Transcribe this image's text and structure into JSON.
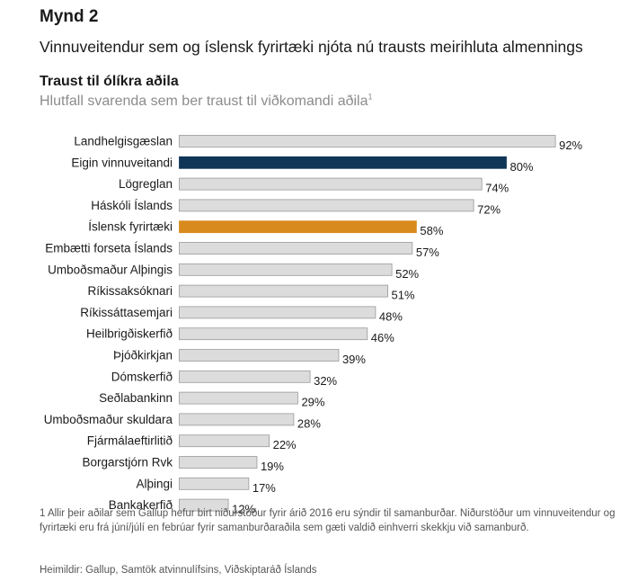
{
  "figure_label": "Mynd 2",
  "headline": "Vinnuveitendur sem og íslensk fyrirtæki njóta nú trausts meirihluta almennings",
  "footnote": "1 Allir þeir aðilar sem Gallup hefur birt niðurstöður fyrir árið 2016 eru sýndir til samanburðar. Niðurstöður um vinnuveitendur og fyrirtæki eru frá júní/júlí en febrúar fyrir samanburðaraðila sem gæti valdið einhverri skekkju við samanburð.",
  "source": "Heimildir: Gallup, Samtök atvinnulífsins, Viðskiptaráð Íslands",
  "colors": {
    "default_bar": "#dcdcdc",
    "bar_stroke": "#9a9a9a",
    "highlight_employer": "#0f3557",
    "highlight_companies": "#d88a1c"
  },
  "chart_data": {
    "type": "bar",
    "orientation": "horizontal",
    "title": "Traust til ólíkra aðila",
    "subtitle": "Hlutfall svarenda sem ber traust til viðkomandi aðila",
    "subtitle_footnote_mark": "1",
    "value_suffix": "%",
    "xlim": [
      0,
      100
    ],
    "categories": [
      "Landhelgisgæslan",
      "Eigin vinnuveitandi",
      "Lögreglan",
      "Háskóli Íslands",
      "Íslensk fyrirtæki",
      "Embætti forseta Íslands",
      "Umboðsmaður Alþingis",
      "Ríkissaksóknari",
      "Ríkissáttasemjari",
      "Heilbrigðiskerfið",
      "Þjóðkirkjan",
      "Dómskerfið",
      "Seðlabankinn",
      "Umboðsmaður skuldara",
      "Fjármálaeftirlitið",
      "Borgarstjórn Rvk",
      "Alþingi",
      "Bankakerfið"
    ],
    "values": [
      92,
      80,
      74,
      72,
      58,
      57,
      52,
      51,
      48,
      46,
      39,
      32,
      29,
      28,
      22,
      19,
      17,
      12
    ],
    "highlights": {
      "Eigin vinnuveitandi": "#0f3557",
      "Íslensk fyrirtæki": "#d88a1c"
    }
  }
}
